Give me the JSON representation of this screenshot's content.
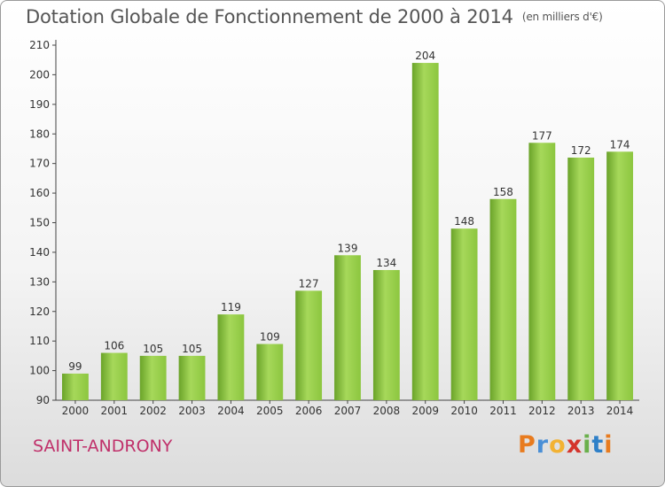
{
  "header": {
    "title": "Dotation Globale de Fonctionnement de 2000 à 2014",
    "unit": "(en milliers d'€)"
  },
  "footer": {
    "commune": "SAINT-ANDRONY",
    "logo": {
      "letters": [
        "P",
        "r",
        "o",
        "x",
        "i",
        "t",
        "i"
      ],
      "colors": [
        "#e87b1e",
        "#4a8fd6",
        "#f2b233",
        "#d4342c",
        "#6ab04c",
        "#2f80c8",
        "#e87b1e"
      ]
    }
  },
  "chart_data": {
    "type": "bar",
    "categories": [
      "2000",
      "2001",
      "2002",
      "2003",
      "2004",
      "2005",
      "2006",
      "2007",
      "2008",
      "2009",
      "2010",
      "2011",
      "2012",
      "2013",
      "2014"
    ],
    "values": [
      99,
      106,
      105,
      105,
      119,
      109,
      127,
      139,
      134,
      204,
      148,
      158,
      177,
      172,
      174
    ],
    "ylim": [
      90,
      210
    ],
    "yticks": [
      90,
      100,
      110,
      120,
      130,
      140,
      150,
      160,
      170,
      180,
      190,
      200,
      210
    ],
    "grid": false,
    "colors": {
      "bar": "#8cc63f",
      "bar_dark": "#6aa329",
      "bar_light": "#a6d85a"
    }
  }
}
